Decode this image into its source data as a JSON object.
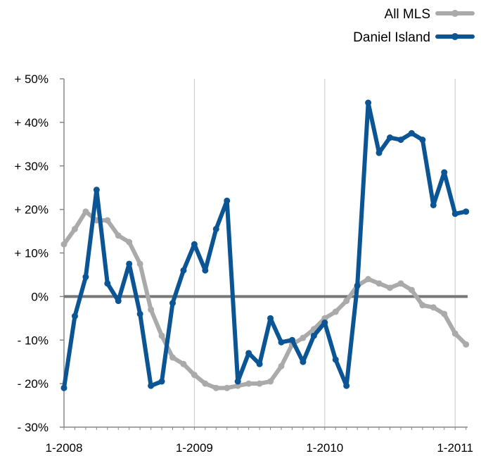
{
  "chart_data": {
    "type": "line",
    "title": "",
    "xlabel": "",
    "ylabel": "",
    "ylim": [
      -30,
      50
    ],
    "yticks": [
      {
        "value": 50,
        "label": "+ 50%"
      },
      {
        "value": 40,
        "label": "+ 40%"
      },
      {
        "value": 30,
        "label": "+ 30%"
      },
      {
        "value": 20,
        "label": "+ 20%"
      },
      {
        "value": 10,
        "label": "+ 10%"
      },
      {
        "value": 0,
        "label": "0%"
      },
      {
        "value": -10,
        "label": "- 10%"
      },
      {
        "value": -20,
        "label": "- 20%"
      },
      {
        "value": -30,
        "label": "- 30%"
      }
    ],
    "xticks": [
      {
        "index": 0,
        "label": "1-2008"
      },
      {
        "index": 12,
        "label": "1-2009"
      },
      {
        "index": 24,
        "label": "1-2010"
      },
      {
        "index": 36,
        "label": "1-2011"
      }
    ],
    "x_count": 38,
    "grid": "vertical lines at each January",
    "zero_line": true,
    "legend_position": "top-right",
    "series": [
      {
        "name": "All MLS",
        "color": "#aaaaaa",
        "values": [
          12,
          15.5,
          19.5,
          17.5,
          17.5,
          14,
          12.5,
          7.5,
          -3,
          -9,
          -14,
          -15.5,
          -18,
          -20,
          -21,
          -21,
          -20.5,
          -20,
          -20,
          -19.5,
          -16,
          -11,
          -9.5,
          -7.5,
          -5,
          -3.5,
          -1,
          2.5,
          4,
          3,
          2,
          3,
          1.5,
          -2,
          -2.5,
          -4,
          -8.5,
          -11
        ]
      },
      {
        "name": "Daniel Island",
        "color": "#0b5594",
        "values": [
          -21,
          -4.5,
          4.5,
          24.5,
          3,
          -1,
          7.5,
          -4,
          -20.5,
          -19.5,
          -1.5,
          6,
          12,
          6,
          15.5,
          22,
          -19.5,
          -13,
          -15.5,
          -5,
          -10.5,
          -10,
          -15,
          -9,
          -6,
          -14.5,
          -20.5,
          2.5,
          44.5,
          33,
          36.5,
          36,
          37.5,
          36,
          21,
          28.5,
          19,
          19.5
        ]
      }
    ]
  }
}
